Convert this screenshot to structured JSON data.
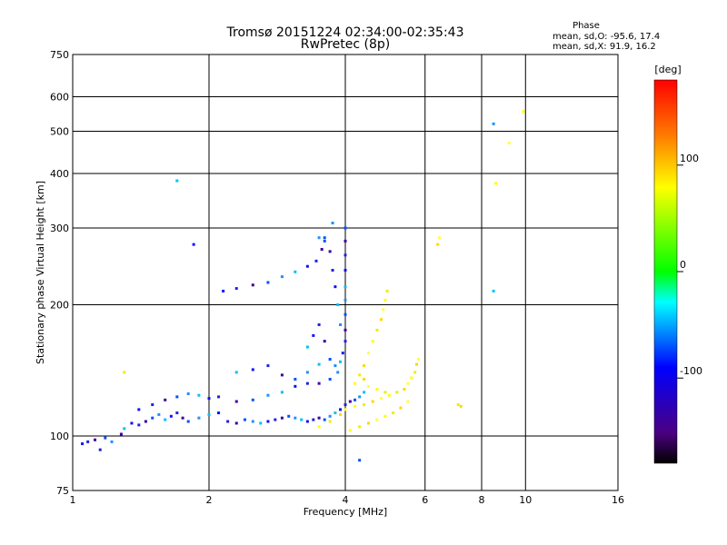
{
  "chart_data": {
    "type": "scatter",
    "title": "Tromsø 20151224 02:34:00-02:35:43",
    "subtitle": "RwPretec (8p)",
    "phase_box": {
      "heading": "Phase",
      "line_o": "mean, sd,O: -95.6, 17.4",
      "line_x": "mean, sd,X:  91.9, 16.2"
    },
    "xlabel": "Frequency [MHz]",
    "ylabel": "Stationary phase Virtual Height [km]",
    "x_scale": "log",
    "y_scale": "log",
    "xlim": [
      1,
      16
    ],
    "ylim": [
      75,
      750
    ],
    "x_ticks": [
      1,
      2,
      4,
      6,
      8,
      10,
      16
    ],
    "x_tick_labels": [
      "1",
      "2",
      "4",
      "6",
      "8",
      "10",
      "16"
    ],
    "y_ticks": [
      75,
      100,
      200,
      300,
      400,
      500,
      600,
      750
    ],
    "y_tick_labels": [
      "75",
      "100",
      "200",
      "300",
      "400",
      "500",
      "600",
      "750"
    ],
    "grid": true,
    "colorbar": {
      "label": "[deg]",
      "range": [
        -180,
        180
      ],
      "ticks": [
        100,
        0,
        -100
      ],
      "tick_labels": [
        "100",
        "0",
        "-100"
      ]
    },
    "o_trace": {
      "phase_mean": -95.6,
      "points": [
        [
          1.05,
          96
        ],
        [
          1.08,
          97
        ],
        [
          1.12,
          98
        ],
        [
          1.18,
          99
        ],
        [
          1.22,
          97
        ],
        [
          1.3,
          104
        ],
        [
          1.35,
          107
        ],
        [
          1.4,
          106
        ],
        [
          1.45,
          108
        ],
        [
          1.5,
          110
        ],
        [
          1.55,
          112
        ],
        [
          1.6,
          109
        ],
        [
          1.65,
          111
        ],
        [
          1.7,
          113
        ],
        [
          1.75,
          110
        ],
        [
          1.8,
          108
        ],
        [
          1.9,
          110
        ],
        [
          2.0,
          112
        ],
        [
          2.1,
          113
        ],
        [
          2.2,
          108
        ],
        [
          2.3,
          107
        ],
        [
          2.4,
          109
        ],
        [
          2.5,
          108
        ],
        [
          2.6,
          107
        ],
        [
          2.7,
          108
        ],
        [
          2.8,
          109
        ],
        [
          2.9,
          110
        ],
        [
          3.0,
          111
        ],
        [
          3.1,
          110
        ],
        [
          3.2,
          109
        ],
        [
          3.3,
          108
        ],
        [
          3.4,
          109
        ],
        [
          3.5,
          110
        ],
        [
          3.6,
          109
        ],
        [
          3.7,
          111
        ],
        [
          3.8,
          113
        ],
        [
          3.9,
          115
        ],
        [
          4.0,
          118
        ],
        [
          4.1,
          120
        ],
        [
          4.2,
          121
        ],
        [
          4.3,
          123
        ],
        [
          4.4,
          126
        ],
        [
          1.4,
          115
        ],
        [
          1.5,
          118
        ],
        [
          1.6,
          121
        ],
        [
          1.7,
          123
        ],
        [
          1.8,
          125
        ],
        [
          1.9,
          124
        ],
        [
          2.0,
          122
        ],
        [
          2.1,
          123
        ],
        [
          2.3,
          120
        ],
        [
          2.5,
          121
        ],
        [
          2.7,
          124
        ],
        [
          2.9,
          126
        ],
        [
          3.1,
          130
        ],
        [
          3.3,
          132
        ],
        [
          3.5,
          132
        ],
        [
          3.7,
          135
        ],
        [
          3.85,
          140
        ],
        [
          3.9,
          148
        ],
        [
          3.95,
          155
        ],
        [
          4.0,
          165
        ],
        [
          4.0,
          175
        ],
        [
          4.0,
          190
        ],
        [
          4.0,
          205
        ],
        [
          4.0,
          220
        ],
        [
          4.0,
          240
        ],
        [
          4.0,
          260
        ],
        [
          4.0,
          280
        ],
        [
          4.0,
          300
        ],
        [
          3.9,
          180
        ],
        [
          3.85,
          200
        ],
        [
          3.8,
          220
        ],
        [
          3.75,
          240
        ],
        [
          3.7,
          265
        ],
        [
          3.6,
          280
        ],
        [
          3.5,
          285
        ],
        [
          3.3,
          160
        ],
        [
          3.4,
          170
        ],
        [
          3.5,
          180
        ],
        [
          3.6,
          165
        ],
        [
          3.7,
          150
        ],
        [
          3.8,
          145
        ],
        [
          2.3,
          140
        ],
        [
          2.5,
          142
        ],
        [
          2.7,
          145
        ],
        [
          2.9,
          138
        ],
        [
          3.1,
          135
        ],
        [
          3.3,
          140
        ],
        [
          3.5,
          146
        ],
        [
          2.15,
          215
        ],
        [
          2.3,
          218
        ],
        [
          2.5,
          222
        ],
        [
          2.7,
          225
        ],
        [
          2.9,
          232
        ],
        [
          3.1,
          238
        ],
        [
          3.3,
          245
        ],
        [
          3.45,
          252
        ],
        [
          3.55,
          268
        ],
        [
          3.6,
          285
        ],
        [
          3.75,
          308
        ],
        [
          1.7,
          385
        ],
        [
          1.85,
          275
        ],
        [
          1.15,
          93
        ],
        [
          1.28,
          101
        ],
        [
          4.3,
          88
        ],
        [
          8.5,
          520
        ],
        [
          8.5,
          215
        ]
      ]
    },
    "x_trace": {
      "phase_mean": 91.9,
      "points": [
        [
          3.5,
          105
        ],
        [
          3.7,
          108
        ],
        [
          3.9,
          112
        ],
        [
          4.0,
          115
        ],
        [
          4.2,
          117
        ],
        [
          4.4,
          118
        ],
        [
          4.6,
          120
        ],
        [
          4.8,
          122
        ],
        [
          5.0,
          124
        ],
        [
          5.2,
          126
        ],
        [
          5.4,
          128
        ],
        [
          5.5,
          132
        ],
        [
          5.6,
          136
        ],
        [
          5.7,
          140
        ],
        [
          5.75,
          146
        ],
        [
          5.8,
          150
        ],
        [
          4.1,
          103
        ],
        [
          4.3,
          105
        ],
        [
          4.5,
          107
        ],
        [
          4.7,
          109
        ],
        [
          4.9,
          111
        ],
        [
          5.1,
          113
        ],
        [
          5.3,
          116
        ],
        [
          5.5,
          120
        ],
        [
          4.2,
          132
        ],
        [
          4.3,
          138
        ],
        [
          4.4,
          145
        ],
        [
          4.5,
          155
        ],
        [
          4.6,
          165
        ],
        [
          4.7,
          175
        ],
        [
          4.8,
          185
        ],
        [
          4.85,
          195
        ],
        [
          4.9,
          205
        ],
        [
          4.95,
          215
        ],
        [
          4.4,
          135
        ],
        [
          4.5,
          130
        ],
        [
          4.7,
          128
        ],
        [
          4.9,
          126
        ],
        [
          6.4,
          275
        ],
        [
          6.45,
          285
        ],
        [
          8.6,
          380
        ],
        [
          7.1,
          118
        ],
        [
          7.2,
          117
        ],
        [
          9.2,
          470
        ],
        [
          9.9,
          555
        ],
        [
          1.3,
          140
        ]
      ]
    }
  }
}
